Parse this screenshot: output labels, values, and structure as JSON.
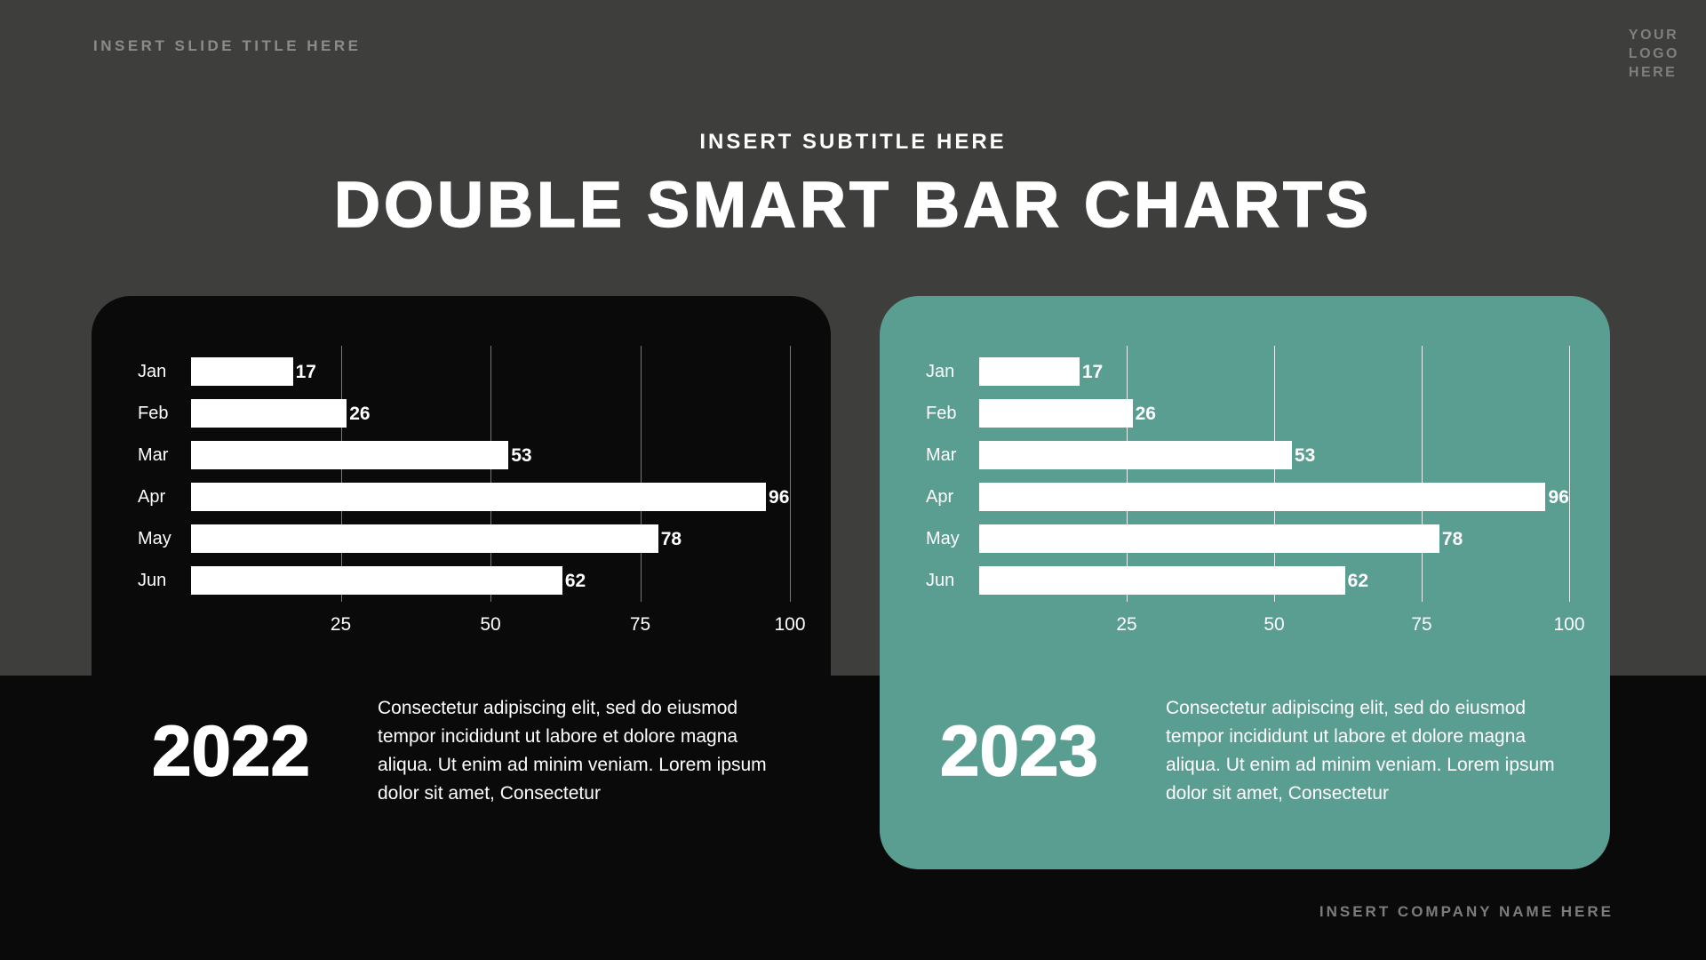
{
  "slide": {
    "title_placeholder": "INSERT SLIDE TITLE HERE",
    "logo_placeholder": "YOUR\nLOGO\nHERE",
    "subtitle": "INSERT SUBTITLE HERE",
    "title": "DOUBLE SMART BAR CHARTS",
    "company_placeholder": "INSERT COMPANY NAME HERE"
  },
  "colors": {
    "background_top": "#3e3e3d",
    "background_bottom": "#0a0a0a",
    "accent_teal": "#5a9e92",
    "bar_white": "#ffffff"
  },
  "chart_data": [
    {
      "type": "bar",
      "orientation": "horizontal",
      "title": "2022",
      "categories": [
        "Jan",
        "Feb",
        "Mar",
        "Apr",
        "May",
        "Jun"
      ],
      "values": [
        17,
        26,
        53,
        96,
        78,
        62
      ],
      "xlim": [
        0,
        100
      ],
      "xticks": [
        25,
        50,
        75,
        100
      ],
      "grid": true,
      "legend": false,
      "bar_color": "#ffffff",
      "card_color": "#0a0a0a",
      "description": "Consectetur adipiscing elit, sed do eiusmod tempor incididunt ut labore et dolore magna aliqua. Ut enim ad minim veniam. Lorem ipsum dolor sit amet, Consectetur"
    },
    {
      "type": "bar",
      "orientation": "horizontal",
      "title": "2023",
      "categories": [
        "Jan",
        "Feb",
        "Mar",
        "Apr",
        "May",
        "Jun"
      ],
      "values": [
        17,
        26,
        53,
        96,
        78,
        62
      ],
      "xlim": [
        0,
        100
      ],
      "xticks": [
        25,
        50,
        75,
        100
      ],
      "grid": true,
      "legend": false,
      "bar_color": "#ffffff",
      "card_color": "#5a9e92",
      "description": "Consectetur adipiscing elit, sed do eiusmod tempor incididunt ut labore et dolore magna aliqua. Ut enim ad minim veniam. Lorem ipsum dolor sit amet, Consectetur"
    }
  ]
}
